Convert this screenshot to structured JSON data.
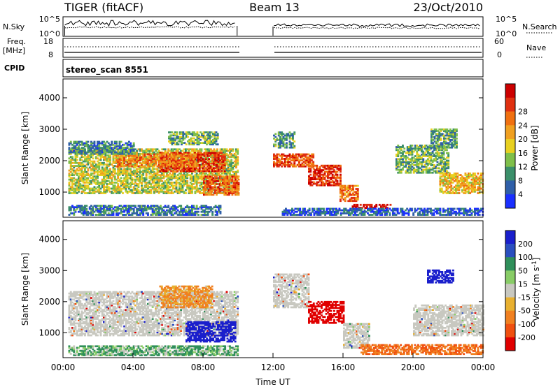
{
  "header": {
    "station": "TIGER (fitACF)",
    "beam": "Beam 13",
    "date": "23/Oct/2010"
  },
  "strips": {
    "nsky": {
      "label": "N.Sky",
      "ticks": [
        "10^5",
        "10^0"
      ],
      "right_ticks": [
        "10^5",
        "10^0"
      ],
      "right_label": "N.Search"
    },
    "freq": {
      "label_line1": "Freq.",
      "label_line2": "[MHz]",
      "ticks": [
        "18",
        "8"
      ],
      "right_ticks": [
        "60",
        "0"
      ],
      "right_label": "Nave"
    },
    "cpid": {
      "label": "CPID",
      "value": "stereo_scan 8551"
    }
  },
  "colors": {
    "ground_scatter": "#c8c8c0",
    "power_scale": [
      "#1a2fff",
      "#2f5fa8",
      "#3b8f6a",
      "#7fbf4a",
      "#e8d020",
      "#f0a020",
      "#f07010",
      "#e03010",
      "#cc0000"
    ],
    "velocity_scale": [
      "#e00000",
      "#f05010",
      "#f08020",
      "#e8b030",
      "#c8c8c0",
      "#88cc66",
      "#2f8f5a",
      "#2a4fbf",
      "#1a1fcc"
    ]
  },
  "chart_data": [
    {
      "type": "heatmap",
      "title": "Power",
      "ylabel": "Slant Range [km]",
      "ylim": [
        200,
        4600
      ],
      "yticks": [
        "1000",
        "2000",
        "3000",
        "4000"
      ],
      "colorbar": {
        "label": "Power [dB]",
        "ticks": [
          "4",
          "8",
          "12",
          "16",
          "20",
          "24",
          "28"
        ]
      },
      "regions": [
        {
          "t": [
            0.3,
            10.0
          ],
          "range": [
            950,
            2350
          ],
          "level": 0.45
        },
        {
          "t": [
            5.5,
            9.2
          ],
          "range": [
            1650,
            2250
          ],
          "level": 0.85
        },
        {
          "t": [
            3.0,
            7.5
          ],
          "range": [
            1800,
            2200
          ],
          "level": 0.7
        },
        {
          "t": [
            0.3,
            4.0
          ],
          "range": [
            2200,
            2600
          ],
          "level": 0.25
        },
        {
          "t": [
            6.0,
            8.8
          ],
          "range": [
            2500,
            2900
          ],
          "level": 0.35
        },
        {
          "t": [
            8.0,
            10.0
          ],
          "range": [
            900,
            1500
          ],
          "level": 0.75
        },
        {
          "t": [
            12.0,
            14.3
          ],
          "range": [
            1800,
            2200
          ],
          "level": 0.8
        },
        {
          "t": [
            12.0,
            13.2
          ],
          "range": [
            2400,
            2900
          ],
          "level": 0.3
        },
        {
          "t": [
            14.0,
            15.8
          ],
          "range": [
            1200,
            1850
          ],
          "level": 0.85
        },
        {
          "t": [
            15.8,
            16.8
          ],
          "range": [
            700,
            1200
          ],
          "level": 0.7
        },
        {
          "t": [
            16.5,
            18.7
          ],
          "range": [
            480,
            620
          ],
          "level": 0.95
        },
        {
          "t": [
            19.0,
            22.0
          ],
          "range": [
            1600,
            2500
          ],
          "level": 0.35
        },
        {
          "t": [
            21.5,
            24.0
          ],
          "range": [
            950,
            1600
          ],
          "level": 0.55
        },
        {
          "t": [
            21.0,
            22.5
          ],
          "range": [
            2400,
            3000
          ],
          "level": 0.3
        },
        {
          "t": [
            12.5,
            24.0
          ],
          "range": [
            260,
            480
          ],
          "level": 0.15
        },
        {
          "t": [
            0.3,
            9.0
          ],
          "range": [
            260,
            560
          ],
          "level": 0.2
        }
      ]
    },
    {
      "type": "heatmap",
      "title": "Velocity",
      "xlabel": "Time UT",
      "ylabel": "Slant Range [km]",
      "xlim": [
        0,
        24
      ],
      "xticks": [
        "00:00",
        "04:00",
        "08:00",
        "12:00",
        "16:00",
        "20:00",
        "00:00"
      ],
      "ylim": [
        200,
        4600
      ],
      "yticks": [
        "1000",
        "2000",
        "3000",
        "4000"
      ],
      "colorbar": {
        "label": "Velocity [m s^-1]",
        "ticks": [
          "200",
          "100",
          "50",
          "15",
          "-15",
          "-50",
          "-100",
          "-200"
        ]
      },
      "regions": [
        {
          "t": [
            0.3,
            10.0
          ],
          "range": [
            900,
            2300
          ],
          "v": 0,
          "kind": "ground"
        },
        {
          "t": [
            7.0,
            9.8
          ],
          "range": [
            700,
            1350
          ],
          "v": 220,
          "kind": "ionospheric"
        },
        {
          "t": [
            5.5,
            8.5
          ],
          "range": [
            1800,
            2500
          ],
          "v": -40,
          "kind": "ionospheric"
        },
        {
          "t": [
            12.0,
            14.0
          ],
          "range": [
            1800,
            2900
          ],
          "v": 0,
          "kind": "ground"
        },
        {
          "t": [
            14.0,
            16.0
          ],
          "range": [
            1300,
            2000
          ],
          "v": -200,
          "kind": "ionospheric"
        },
        {
          "t": [
            16.0,
            17.5
          ],
          "range": [
            500,
            1300
          ],
          "v": 0,
          "kind": "ground"
        },
        {
          "t": [
            17.0,
            24.0
          ],
          "range": [
            300,
            600
          ],
          "v": -70,
          "kind": "ionospheric"
        },
        {
          "t": [
            20.0,
            24.0
          ],
          "range": [
            900,
            1900
          ],
          "v": 0,
          "kind": "ground"
        },
        {
          "t": [
            20.8,
            22.3
          ],
          "range": [
            2600,
            3000
          ],
          "v": 180,
          "kind": "ionospheric"
        },
        {
          "t": [
            0.3,
            10.0
          ],
          "range": [
            260,
            560
          ],
          "v": 30,
          "kind": "ionospheric"
        }
      ]
    }
  ]
}
